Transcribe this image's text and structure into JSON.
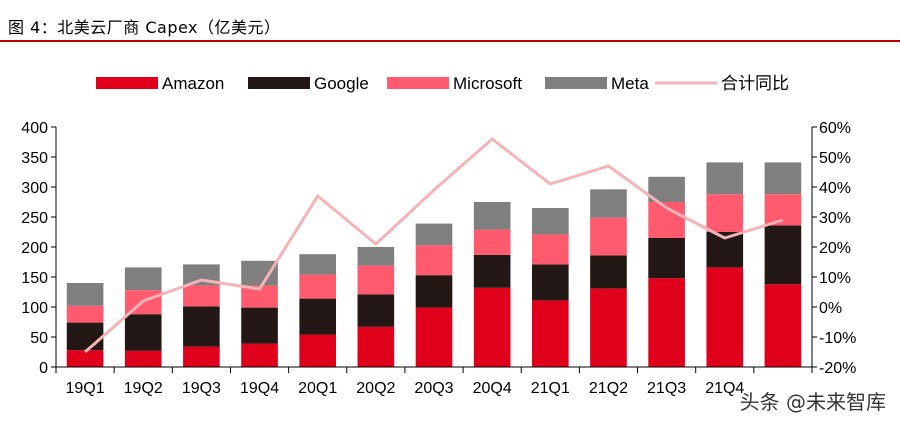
{
  "header": {
    "title": "图 4：北美云厂商 Capex（亿美元）"
  },
  "watermark": "头条 @未来智库",
  "chart_data": {
    "type": "bar",
    "stacked": true,
    "categories": [
      "19Q1",
      "19Q2",
      "19Q3",
      "19Q4",
      "20Q1",
      "20Q2",
      "20Q3",
      "20Q4",
      "21Q1",
      "21Q2",
      "21Q3",
      "21Q4"
    ],
    "series": [
      {
        "name": "Amazon",
        "color": "#e0001b",
        "values": [
          28,
          27,
          34,
          39,
          54,
          67,
          99,
          132,
          111,
          131,
          148,
          166
        ]
      },
      {
        "name": "Google",
        "color": "#231815",
        "values": [
          46,
          61,
          67,
          60,
          60,
          54,
          54,
          55,
          60,
          55,
          67,
          59
        ]
      },
      {
        "name": "Microsoft",
        "color": "#ff5a6e",
        "values": [
          28,
          40,
          35,
          37,
          40,
          48,
          50,
          42,
          50,
          63,
          60,
          63
        ]
      },
      {
        "name": "Meta",
        "color": "#7f7f7f",
        "values": [
          38,
          38,
          35,
          41,
          34,
          31,
          36,
          46,
          44,
          47,
          42,
          53
        ]
      }
    ],
    "line": {
      "name": "合计同比",
      "color": "#f5b3b8",
      "values": [
        -15,
        2,
        9,
        6,
        37,
        21,
        39,
        56,
        41,
        47,
        33,
        23
      ]
    },
    "extra_end": {
      "bar_values": [
        138,
        98,
        52,
        53
      ],
      "line_value": 29
    },
    "ylim": [
      0,
      400
    ],
    "yticks": [
      0,
      50,
      100,
      150,
      200,
      250,
      300,
      350,
      400
    ],
    "y2lim": [
      -20,
      60
    ],
    "y2ticks": [
      "-20%",
      "-10%",
      "0%",
      "10%",
      "20%",
      "30%",
      "40%",
      "50%",
      "60%"
    ],
    "legend": "top",
    "grid": false
  }
}
